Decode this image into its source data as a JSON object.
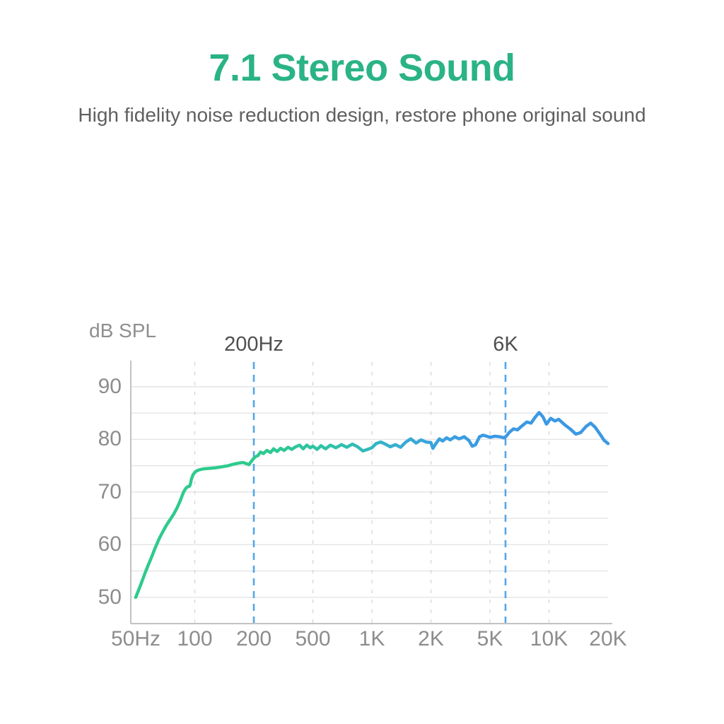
{
  "header": {
    "title": "7.1 Stereo Sound",
    "subtitle": "High fidelity noise reduction design, restore phone original sound"
  },
  "style": {
    "background": "#ffffff",
    "title_color": "#2ab386",
    "subtitle_color": "#5f5f5f",
    "axis_line_color": "#c2c2c2",
    "grid_color": "#e4e4e4",
    "grid_dash_color": "#d8d8d8",
    "tick_label_color": "#8d8d8d",
    "marker_label_color": "#4f4f4f",
    "marker_line_color": "#54a6e8",
    "ylabel_color": "#8f8f8f",
    "curve_green": "#2ecb8d",
    "curve_blue": "#3b99e4"
  },
  "chart_data": {
    "type": "line",
    "title": "",
    "xlabel": "",
    "ylabel": "dB SPL",
    "grid": true,
    "legend": "none",
    "x_ticks": {
      "labels": [
        "50Hz",
        "100",
        "200",
        "500",
        "1K",
        "2K",
        "5K",
        "10K",
        "20K"
      ],
      "freqs": [
        50,
        100,
        200,
        500,
        1000,
        2000,
        5000,
        10000,
        20000
      ],
      "scale": "log-segments-evenly-spaced"
    },
    "y_ticks": [
      90,
      80,
      70,
      60,
      50
    ],
    "y_grid_step": 5,
    "y_grid_range": [
      50,
      90
    ],
    "ylim": [
      45,
      94.7
    ],
    "markers": [
      {
        "label": "200Hz",
        "freq": 200
      },
      {
        "label": "6K",
        "freq": 6000
      }
    ],
    "series": [
      {
        "name": "frequency response (dB SPL vs Hz)",
        "gradient": [
          {
            "at": 0.0,
            "color": "#2ecb8d"
          },
          {
            "at": 0.25,
            "color": "#2ecb8d"
          },
          {
            "at": 0.45,
            "color": "#31bfae"
          },
          {
            "at": 0.55,
            "color": "#36aed0"
          },
          {
            "at": 0.65,
            "color": "#3aa0e0"
          },
          {
            "at": 0.75,
            "color": "#3b99e4"
          },
          {
            "at": 1.0,
            "color": "#3b99e4"
          }
        ],
        "points": [
          [
            50,
            50.0
          ],
          [
            52,
            51.6
          ],
          [
            54,
            53.2
          ],
          [
            56,
            54.8
          ],
          [
            58,
            56.2
          ],
          [
            60,
            57.5
          ],
          [
            63,
            59.5
          ],
          [
            66,
            61.2
          ],
          [
            69,
            62.6
          ],
          [
            72,
            63.8
          ],
          [
            75,
            64.8
          ],
          [
            78,
            65.8
          ],
          [
            81,
            66.9
          ],
          [
            84,
            68.2
          ],
          [
            86,
            69.2
          ],
          [
            88,
            70.1
          ],
          [
            90,
            70.7
          ],
          [
            92,
            71.0
          ],
          [
            94,
            71.1
          ],
          [
            95,
            71.5
          ],
          [
            96,
            72.4
          ],
          [
            98,
            73.3
          ],
          [
            101,
            73.9
          ],
          [
            105,
            74.2
          ],
          [
            111,
            74.4
          ],
          [
            119,
            74.5
          ],
          [
            128,
            74.6
          ],
          [
            138,
            74.8
          ],
          [
            148,
            75.0
          ],
          [
            158,
            75.3
          ],
          [
            168,
            75.5
          ],
          [
            176,
            75.6
          ],
          [
            183,
            75.4
          ],
          [
            189,
            75.2
          ],
          [
            194,
            75.8
          ],
          [
            200,
            76.4
          ],
          [
            205,
            76.7
          ],
          [
            213,
            76.9
          ],
          [
            222,
            77.6
          ],
          [
            232,
            77.3
          ],
          [
            245,
            77.9
          ],
          [
            259,
            77.5
          ],
          [
            272,
            78.2
          ],
          [
            287,
            77.7
          ],
          [
            303,
            78.3
          ],
          [
            320,
            77.9
          ],
          [
            340,
            78.5
          ],
          [
            360,
            78.1
          ],
          [
            383,
            78.6
          ],
          [
            407,
            78.9
          ],
          [
            430,
            78.2
          ],
          [
            455,
            78.9
          ],
          [
            480,
            78.4
          ],
          [
            500,
            78.7
          ],
          [
            525,
            78.1
          ],
          [
            550,
            78.8
          ],
          [
            580,
            78.2
          ],
          [
            615,
            78.9
          ],
          [
            655,
            78.4
          ],
          [
            700,
            79.0
          ],
          [
            745,
            78.5
          ],
          [
            795,
            79.1
          ],
          [
            845,
            78.6
          ],
          [
            900,
            77.8
          ],
          [
            950,
            78.1
          ],
          [
            1000,
            78.4
          ],
          [
            1050,
            79.2
          ],
          [
            1110,
            79.5
          ],
          [
            1170,
            79.1
          ],
          [
            1240,
            78.6
          ],
          [
            1320,
            79.0
          ],
          [
            1400,
            78.5
          ],
          [
            1490,
            79.5
          ],
          [
            1580,
            80.1
          ],
          [
            1680,
            79.3
          ],
          [
            1780,
            79.9
          ],
          [
            1890,
            79.5
          ],
          [
            2000,
            79.4
          ],
          [
            2060,
            78.3
          ],
          [
            2160,
            79.2
          ],
          [
            2280,
            80.1
          ],
          [
            2400,
            79.7
          ],
          [
            2550,
            80.3
          ],
          [
            2700,
            79.9
          ],
          [
            2900,
            80.5
          ],
          [
            3100,
            80.1
          ],
          [
            3350,
            80.5
          ],
          [
            3600,
            79.8
          ],
          [
            3800,
            78.7
          ],
          [
            4000,
            79.0
          ],
          [
            4250,
            80.5
          ],
          [
            4500,
            80.8
          ],
          [
            4750,
            80.6
          ],
          [
            5000,
            80.4
          ],
          [
            5300,
            80.6
          ],
          [
            5600,
            80.5
          ],
          [
            5900,
            80.3
          ],
          [
            6050,
            80.6
          ],
          [
            6300,
            81.4
          ],
          [
            6600,
            82.0
          ],
          [
            6900,
            81.8
          ],
          [
            7300,
            82.6
          ],
          [
            7700,
            83.3
          ],
          [
            8100,
            83.1
          ],
          [
            8500,
            84.2
          ],
          [
            8900,
            85.1
          ],
          [
            9300,
            84.3
          ],
          [
            9700,
            82.9
          ],
          [
            10200,
            84.0
          ],
          [
            10700,
            83.5
          ],
          [
            11200,
            83.8
          ],
          [
            12000,
            82.8
          ],
          [
            12900,
            81.9
          ],
          [
            13700,
            81.0
          ],
          [
            14500,
            81.3
          ],
          [
            15500,
            82.5
          ],
          [
            16300,
            83.1
          ],
          [
            17200,
            82.3
          ],
          [
            18200,
            81.0
          ],
          [
            19100,
            79.8
          ],
          [
            20000,
            79.2
          ]
        ]
      }
    ]
  }
}
